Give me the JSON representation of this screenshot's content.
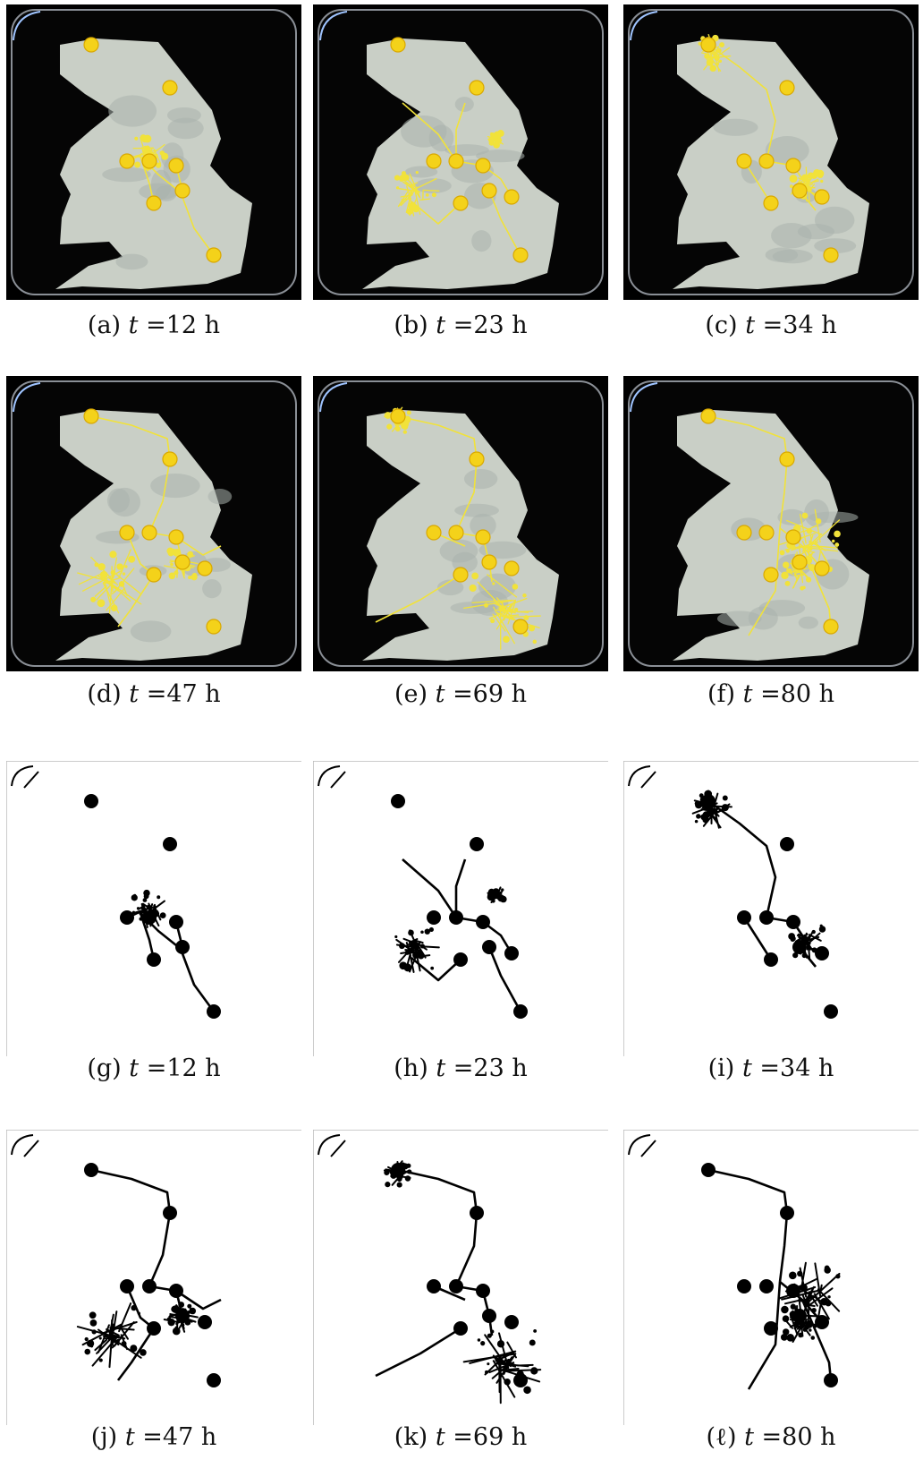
{
  "panels": [
    {
      "letter": "(a)",
      "time": "=12 h",
      "kind": "photo"
    },
    {
      "letter": "(b)",
      "time": "=23 h",
      "kind": "photo"
    },
    {
      "letter": "(c)",
      "time": "=34 h",
      "kind": "photo"
    },
    {
      "letter": "(d)",
      "time": "=47 h",
      "kind": "photo"
    },
    {
      "letter": "(e)",
      "time": "=69 h",
      "kind": "photo"
    },
    {
      "letter": "(f)",
      "time": "=80 h",
      "kind": "photo"
    },
    {
      "letter": "(g)",
      "time": "=12 h",
      "kind": "binary"
    },
    {
      "letter": "(h)",
      "time": "=23 h",
      "kind": "binary"
    },
    {
      "letter": "(i)",
      "time": "=34 h",
      "kind": "binary"
    },
    {
      "letter": "(j)",
      "time": "=47 h",
      "kind": "binary"
    },
    {
      "letter": "(k)",
      "time": "=69 h",
      "kind": "binary"
    },
    {
      "letter": "(ℓ)",
      "time": "=80 h",
      "kind": "binary"
    }
  ],
  "variable": "t",
  "colors": {
    "dish_bg": "#050505",
    "agar": "#c9cfc6",
    "agar_shade": "#a9b2ad",
    "oat": "#f4d21a",
    "plasmodium": "#f1e23a",
    "binary_fg": "#000000",
    "binary_bg": "#ffffff"
  }
}
